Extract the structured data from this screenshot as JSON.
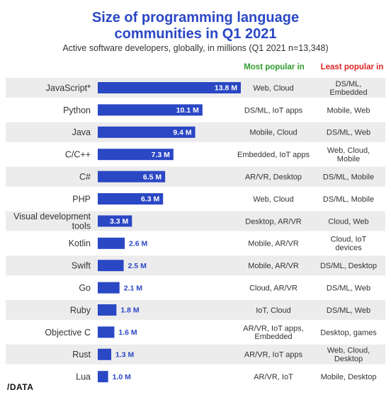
{
  "chart_data": {
    "type": "bar",
    "orientation": "horizontal",
    "title": "Size of programming language communities in Q1 2021",
    "title_lines": [
      "Size of programming language",
      "communities in Q1 2021"
    ],
    "subtitle": "Active software developers, globally, in millions (Q1 2021 n=13,348)",
    "xlabel": "",
    "ylabel": "",
    "xlim": [
      0,
      13.8
    ],
    "grid": false,
    "legend": "none",
    "columns": {
      "most_popular": "Most popular in",
      "least_popular": "Least popular in"
    },
    "categories": [
      "JavaScript*",
      "Python",
      "Java",
      "C/C++",
      "C#",
      "PHP",
      "Visual development tools",
      "Kotlin",
      "Swift",
      "Go",
      "Ruby",
      "Objective C",
      "Rust",
      "Lua"
    ],
    "category_lines": [
      [
        "JavaScript*"
      ],
      [
        "Python"
      ],
      [
        "Java"
      ],
      [
        "C/C++"
      ],
      [
        "C#"
      ],
      [
        "PHP"
      ],
      [
        "Visual development",
        "tools"
      ],
      [
        "Kotlin"
      ],
      [
        "Swift"
      ],
      [
        "Go"
      ],
      [
        "Ruby"
      ],
      [
        "Objective C"
      ],
      [
        "Rust"
      ],
      [
        "Lua"
      ]
    ],
    "values": [
      13.8,
      10.1,
      9.4,
      7.3,
      6.5,
      6.3,
      3.3,
      2.6,
      2.5,
      2.1,
      1.8,
      1.6,
      1.3,
      1.0
    ],
    "value_labels": [
      "13.8 M",
      "10.1 M",
      "9.4 M",
      "7.3 M",
      "6.5 M",
      "6.3 M",
      "3.3 M",
      "2.6 M",
      "2.5 M",
      "2.1 M",
      "1.8 M",
      "1.6 M",
      "1.3 M",
      "1.0 M"
    ],
    "most_popular_in": [
      [
        "Web, Cloud"
      ],
      [
        "DS/ML, IoT apps"
      ],
      [
        "Mobile, Cloud"
      ],
      [
        "Embedded, IoT apps"
      ],
      [
        "AR/VR, Desktop"
      ],
      [
        "Web, Cloud"
      ],
      [
        "Desktop, AR/VR"
      ],
      [
        "Mobile, AR/VR"
      ],
      [
        "Mobile, AR/VR"
      ],
      [
        "Cloud, AR/VR"
      ],
      [
        "IoT, Cloud"
      ],
      [
        "AR/VR, IoT apps,",
        "Embedded"
      ],
      [
        "AR/VR, IoT apps"
      ],
      [
        "AR/VR, IoT"
      ]
    ],
    "least_popular_in": [
      [
        "DS/ML,",
        "Embedded"
      ],
      [
        "Mobile, Web"
      ],
      [
        "DS/ML, Web"
      ],
      [
        "Web, Cloud,",
        "Mobile"
      ],
      [
        "DS/ML, Mobile"
      ],
      [
        "DS/ML, Mobile"
      ],
      [
        "Cloud, Web"
      ],
      [
        "Cloud, IoT",
        "devices"
      ],
      [
        "DS/ML, Desktop"
      ],
      [
        "DS/ML, Web"
      ],
      [
        "DS/ML, Web"
      ],
      [
        "Desktop, games"
      ],
      [
        "Web, Cloud,",
        "Desktop"
      ],
      [
        "Mobile, Desktop"
      ]
    ]
  },
  "colors": {
    "bar": "#2a47c4",
    "title": "#2a47c4",
    "most_popular_header": "#2e9e2e",
    "least_popular_header": "#e02424",
    "stripe": "#ececec"
  },
  "logo": "/DATA"
}
